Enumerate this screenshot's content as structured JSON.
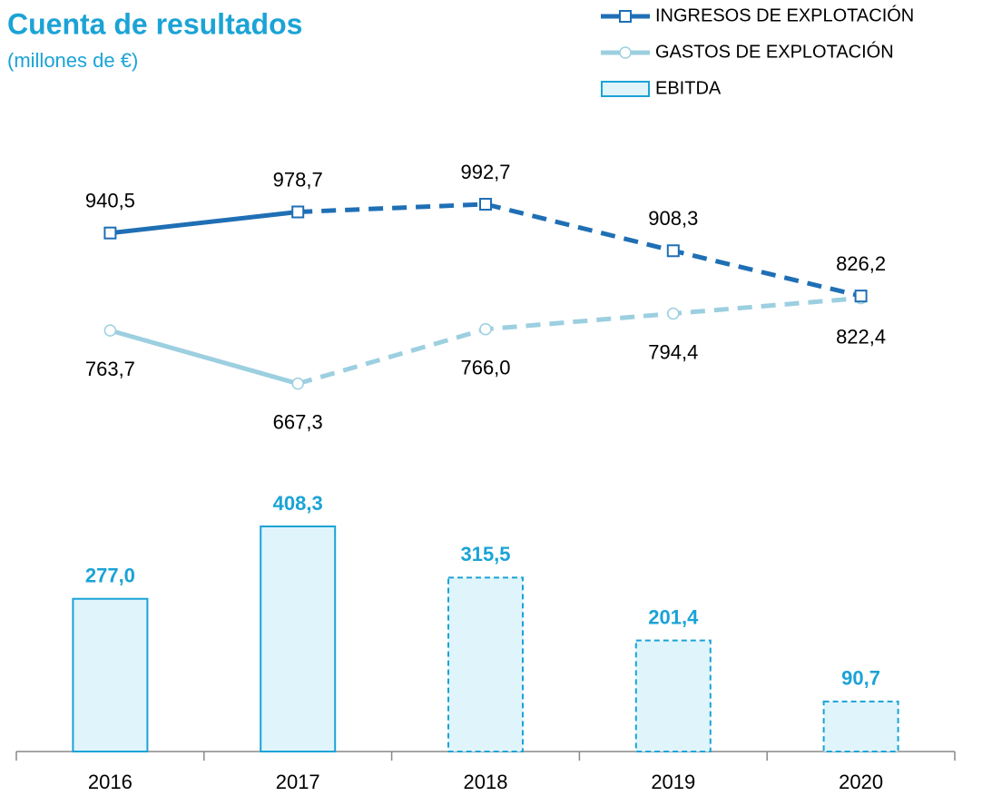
{
  "chart_data": {
    "type": "bar_line",
    "title": "Cuenta de resultados",
    "subtitle": "(millones de €)",
    "categories": [
      "2016",
      "2017",
      "2018",
      "2019",
      "2020"
    ],
    "dashed_from_index": 2,
    "legend": "top-right",
    "series": [
      {
        "name": "INGRESOS DE EXPLOTACIÓN",
        "type": "line",
        "marker": "square",
        "color": "#1f6fb5",
        "values": [
          940.5,
          978.7,
          992.7,
          908.3,
          826.2
        ],
        "value_labels": [
          "940,5",
          "978,7",
          "992,7",
          "908,3",
          "826,2"
        ]
      },
      {
        "name": "GASTOS DE EXPLOTACIÓN",
        "type": "line",
        "marker": "circle",
        "color": "#9ccfe0",
        "values": [
          763.7,
          667.3,
          766.0,
          794.4,
          822.4
        ],
        "value_labels": [
          "763,7",
          "667,3",
          "766,0",
          "794,4",
          "822,4"
        ]
      },
      {
        "name": "EBITDA",
        "type": "bar",
        "color": "#dff4fb",
        "edge_color": "#1ba3d6",
        "values": [
          277.0,
          408.3,
          315.5,
          201.4,
          90.7
        ],
        "value_labels": [
          "277,0",
          "408,3",
          "315,5",
          "201,4",
          "90,7"
        ]
      }
    ]
  }
}
